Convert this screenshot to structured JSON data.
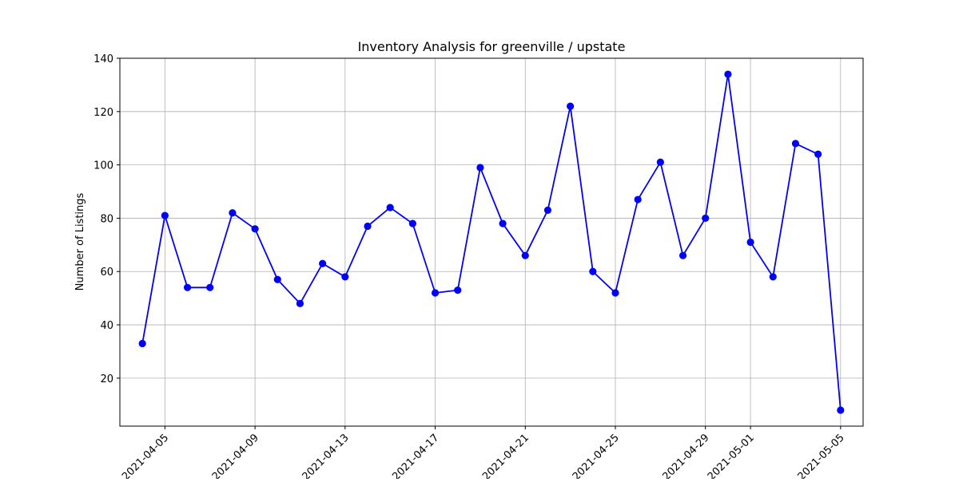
{
  "chart_data": {
    "type": "line",
    "title": "Inventory Analysis for greenville / upstate",
    "xlabel": "",
    "ylabel": "Number of Listings",
    "x_type": "date",
    "xlim": [
      "2021-04-03",
      "2021-05-06"
    ],
    "ylim": [
      2,
      140
    ],
    "x_ticks": [
      "2021-04-05",
      "2021-04-09",
      "2021-04-13",
      "2021-04-17",
      "2021-04-21",
      "2021-04-25",
      "2021-04-29",
      "2021-05-01",
      "2021-05-05"
    ],
    "y_ticks": [
      20,
      40,
      60,
      80,
      100,
      120,
      140
    ],
    "grid": true,
    "line_color": "#0000ff",
    "marker": "circle",
    "series": [
      {
        "x": [
          "2021-04-04",
          "2021-04-05",
          "2021-04-06",
          "2021-04-07",
          "2021-04-08",
          "2021-04-09",
          "2021-04-10",
          "2021-04-11",
          "2021-04-12",
          "2021-04-13",
          "2021-04-14",
          "2021-04-15",
          "2021-04-16",
          "2021-04-17",
          "2021-04-18",
          "2021-04-19",
          "2021-04-20",
          "2021-04-21",
          "2021-04-22",
          "2021-04-23",
          "2021-04-24",
          "2021-04-25",
          "2021-04-26",
          "2021-04-27",
          "2021-04-28",
          "2021-04-29",
          "2021-04-30",
          "2021-05-01",
          "2021-05-02",
          "2021-05-03",
          "2021-05-04",
          "2021-05-05"
        ],
        "values": [
          33,
          81,
          54,
          54,
          82,
          76,
          57,
          48,
          63,
          58,
          77,
          84,
          78,
          52,
          53,
          99,
          78,
          66,
          83,
          122,
          60,
          52,
          87,
          101,
          66,
          80,
          134,
          71,
          58,
          108,
          104,
          8
        ]
      }
    ]
  }
}
